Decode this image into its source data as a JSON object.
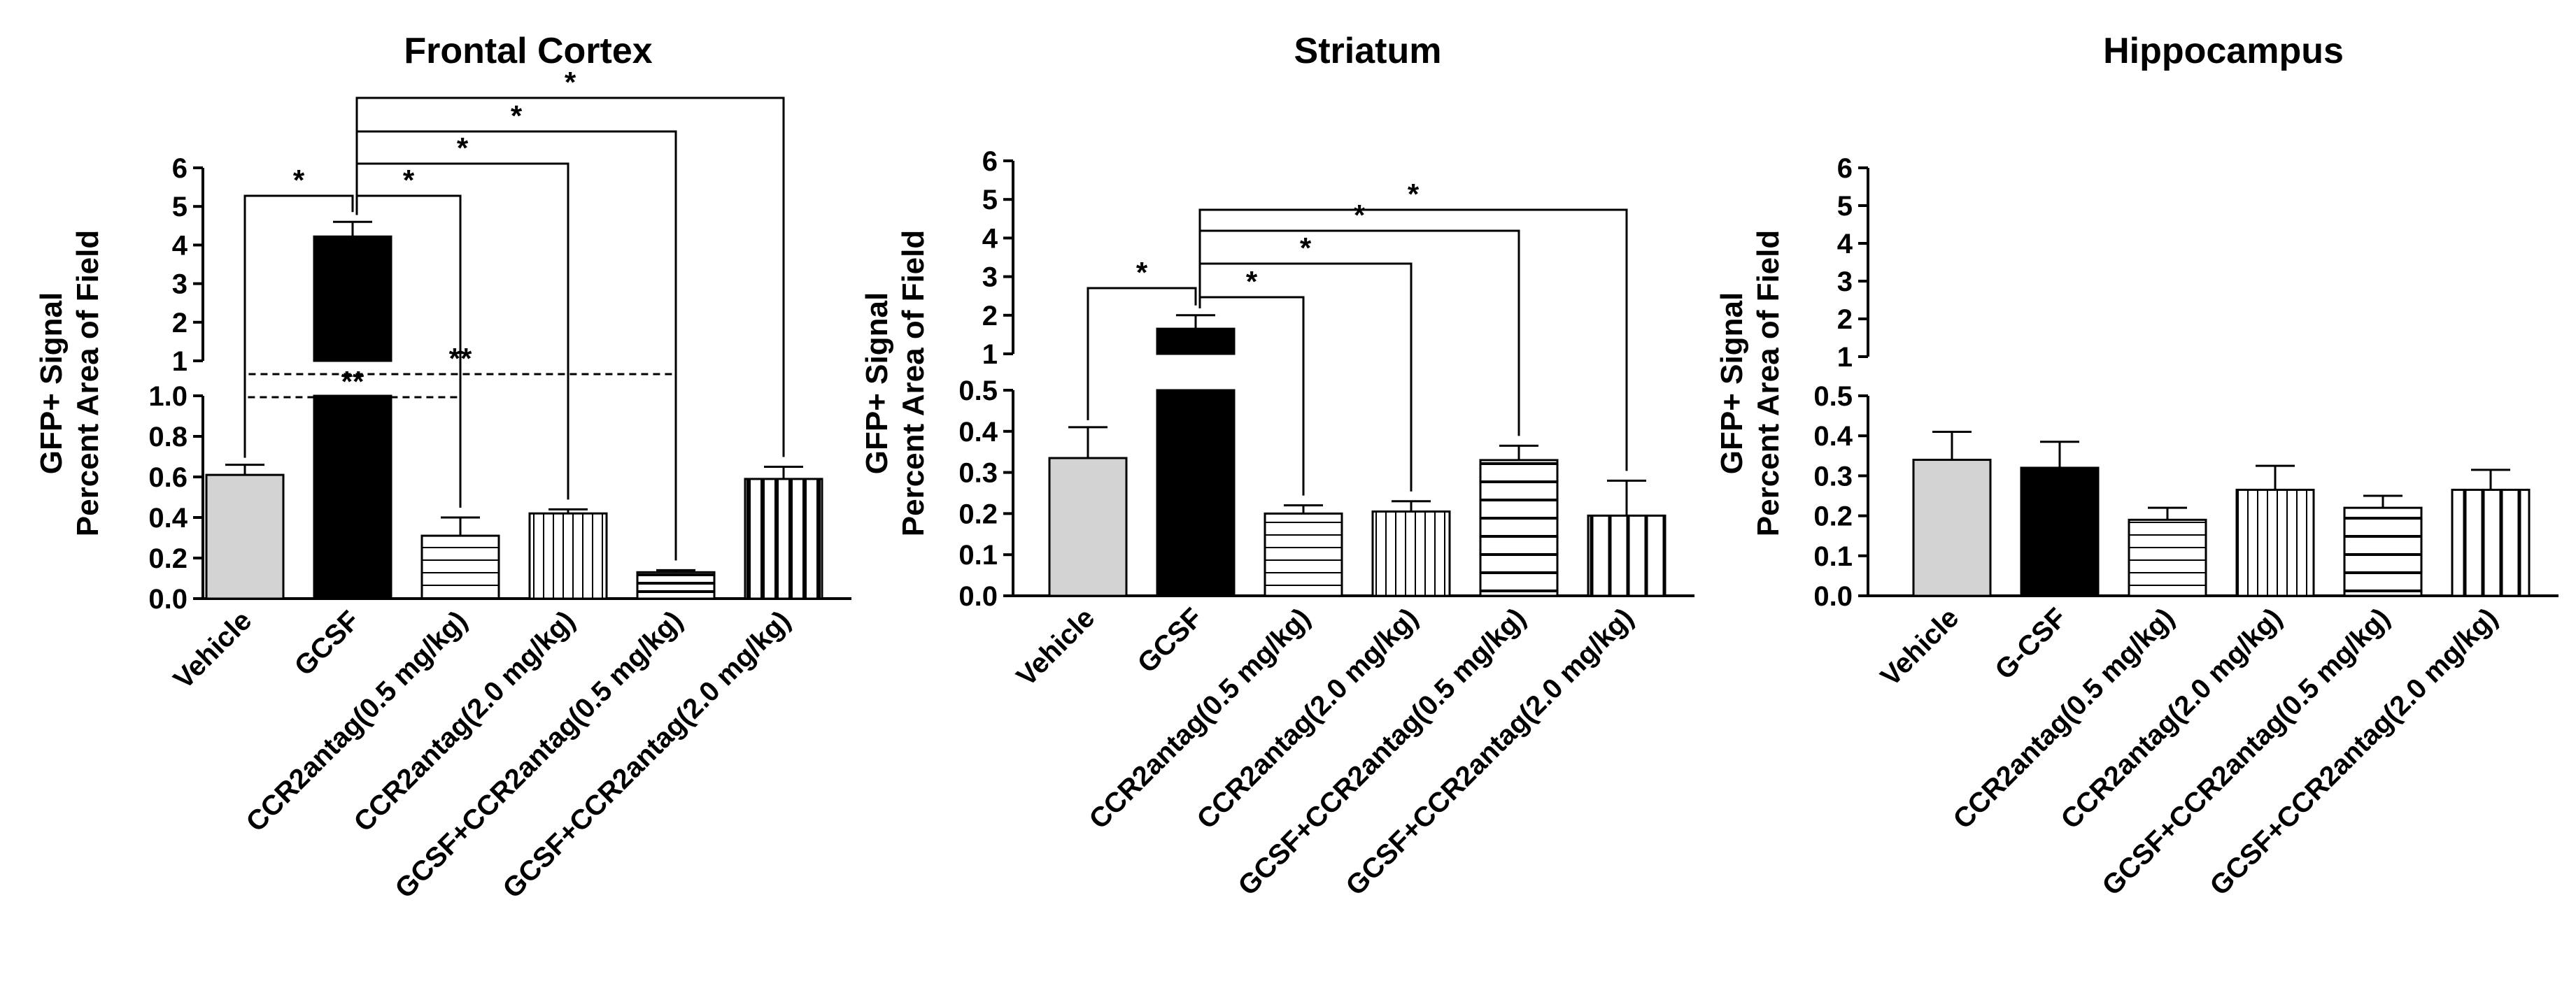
{
  "chart_data": [
    {
      "type": "bar",
      "title": "Frontal Cortex",
      "ylabel_line1": "GFP+ Signal",
      "ylabel_line2": "Percent Area of Field",
      "axis_break": {
        "lower_range": [
          0,
          1.0
        ],
        "upper_range": [
          1,
          6
        ]
      },
      "lower_ticks": [
        "0.0",
        "0.2",
        "0.4",
        "0.6",
        "0.8",
        "1.0"
      ],
      "upper_ticks": [
        "1",
        "2",
        "3",
        "4",
        "5",
        "6"
      ],
      "categories": [
        "Vehicle",
        "GCSF",
        "CCR2antag(0.5 mg/kg)",
        "CCR2antag(2.0 mg/kg)",
        "GCSF+CCR2antag(0.5 mg/kg)",
        "GCSF+CCR2antag(2.0 mg/kg)"
      ],
      "values": [
        0.61,
        4.22,
        0.31,
        0.42,
        0.13,
        0.59
      ],
      "errors": [
        0.05,
        0.38,
        0.09,
        0.02,
        0.01,
        0.06
      ],
      "patterns": [
        "solid-gray",
        "solid-black",
        "horizontal",
        "vertical",
        "horizontal-dense",
        "vertical-dense"
      ],
      "significance": [
        {
          "from": 0,
          "to": 1,
          "label": "*",
          "style": "solid"
        },
        {
          "from": 1,
          "to": 2,
          "label": "*",
          "style": "solid"
        },
        {
          "from": 1,
          "to": 3,
          "label": "*",
          "style": "solid"
        },
        {
          "from": 1,
          "to": 4,
          "label": "*",
          "style": "solid"
        },
        {
          "from": 1,
          "to": 5,
          "label": "*",
          "style": "solid"
        },
        {
          "from": 0,
          "to": 2,
          "label": "**",
          "style": "dashed"
        },
        {
          "from": 0,
          "to": 4,
          "label": "**",
          "style": "dashed"
        }
      ]
    },
    {
      "type": "bar",
      "title": "Striatum",
      "ylabel_line1": "GFP+ Signal",
      "ylabel_line2": "Percent Area of Field",
      "axis_break": {
        "lower_range": [
          0,
          0.5
        ],
        "upper_range": [
          1,
          6
        ]
      },
      "lower_ticks": [
        "0.0",
        "0.1",
        "0.2",
        "0.3",
        "0.4",
        "0.5"
      ],
      "upper_ticks": [
        "1",
        "2",
        "3",
        "4",
        "5",
        "6"
      ],
      "categories": [
        "Vehicle",
        "GCSF",
        "CCR2antag(0.5 mg/kg)",
        "CCR2antag(2.0 mg/kg)",
        "GCSF+CCR2antag(0.5 mg/kg)",
        "GCSF+CCR2antag(2.0 mg/kg)"
      ],
      "values": [
        0.335,
        1.65,
        0.2,
        0.205,
        0.33,
        0.195
      ],
      "errors": [
        0.075,
        0.35,
        0.02,
        0.025,
        0.035,
        0.085
      ],
      "patterns": [
        "solid-gray",
        "solid-black",
        "horizontal",
        "vertical",
        "horizontal-wide",
        "vertical-wide"
      ],
      "significance": [
        {
          "from": 0,
          "to": 1,
          "label": "*",
          "style": "solid"
        },
        {
          "from": 1,
          "to": 2,
          "label": "*",
          "style": "solid"
        },
        {
          "from": 1,
          "to": 3,
          "label": "*",
          "style": "solid"
        },
        {
          "from": 1,
          "to": 4,
          "label": "*",
          "style": "solid"
        },
        {
          "from": 1,
          "to": 5,
          "label": "*",
          "style": "solid"
        }
      ]
    },
    {
      "type": "bar",
      "title": "Hippocampus",
      "ylabel_line1": "GFP+ Signal",
      "ylabel_line2": "Percent Area of Field",
      "axis_break": {
        "lower_range": [
          0,
          0.5
        ],
        "upper_range": [
          1,
          6
        ]
      },
      "lower_ticks": [
        "0.0",
        "0.1",
        "0.2",
        "0.3",
        "0.4",
        "0.5"
      ],
      "upper_ticks": [
        "1",
        "2",
        "3",
        "4",
        "5",
        "6"
      ],
      "categories": [
        "Vehicle",
        "G-CSF",
        "CCR2antag(0.5 mg/kg)",
        "CCR2antag(2.0 mg/kg)",
        "GCSF+CCR2antag(0.5 mg/kg)",
        "GCSF+CCR2antag(2.0 mg/kg)"
      ],
      "values": [
        0.34,
        0.32,
        0.19,
        0.265,
        0.22,
        0.265
      ],
      "errors": [
        0.07,
        0.065,
        0.03,
        0.06,
        0.03,
        0.05
      ],
      "patterns": [
        "solid-gray",
        "solid-black",
        "horizontal",
        "vertical",
        "horizontal-wide",
        "vertical-wide"
      ],
      "significance": []
    }
  ],
  "colors": {
    "vehicle_fill": "#d3d3d3",
    "black_fill": "#000000",
    "stroke": "#000000",
    "background": "#ffffff"
  }
}
